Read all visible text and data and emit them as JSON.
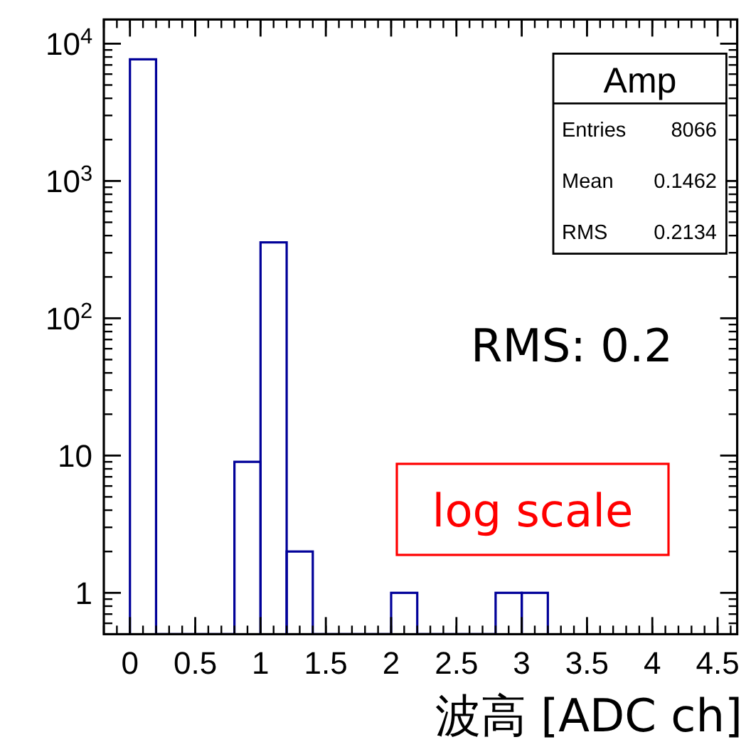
{
  "chart_data": {
    "type": "histogram",
    "xlabel": "波高 [ADC ch]",
    "color": "#000099",
    "log": "y",
    "grid": false,
    "bins": [
      0,
      0.2,
      0.4,
      0.6,
      0.8,
      1.0,
      1.2,
      1.4,
      1.6,
      1.8,
      2.0,
      2.2,
      2.4,
      2.6,
      2.8,
      3.0,
      3.2
    ],
    "values": [
      7692,
      null,
      null,
      null,
      9,
      357,
      2,
      null,
      null,
      null,
      1,
      null,
      null,
      null,
      1,
      1
    ],
    "xlim": [
      -0.2,
      4.65
    ],
    "ylim": [
      0.5,
      15000
    ],
    "xticks": [
      0,
      0.5,
      1,
      1.5,
      2,
      2.5,
      3,
      3.5,
      4,
      4.5
    ],
    "yticks": [
      1,
      10,
      {
        "value": 100,
        "label": "10$^{2}$"
      },
      {
        "value": 1000,
        "label": "10$^{3}$"
      },
      {
        "value": 10000,
        "label": "10$^{4}$"
      }
    ],
    "annotations": [
      "Amp",
      "Entries",
      "8066",
      "Mean",
      "0.1462",
      "RMS",
      "0.2134",
      "RMS: 0.2",
      "log scale"
    ]
  }
}
